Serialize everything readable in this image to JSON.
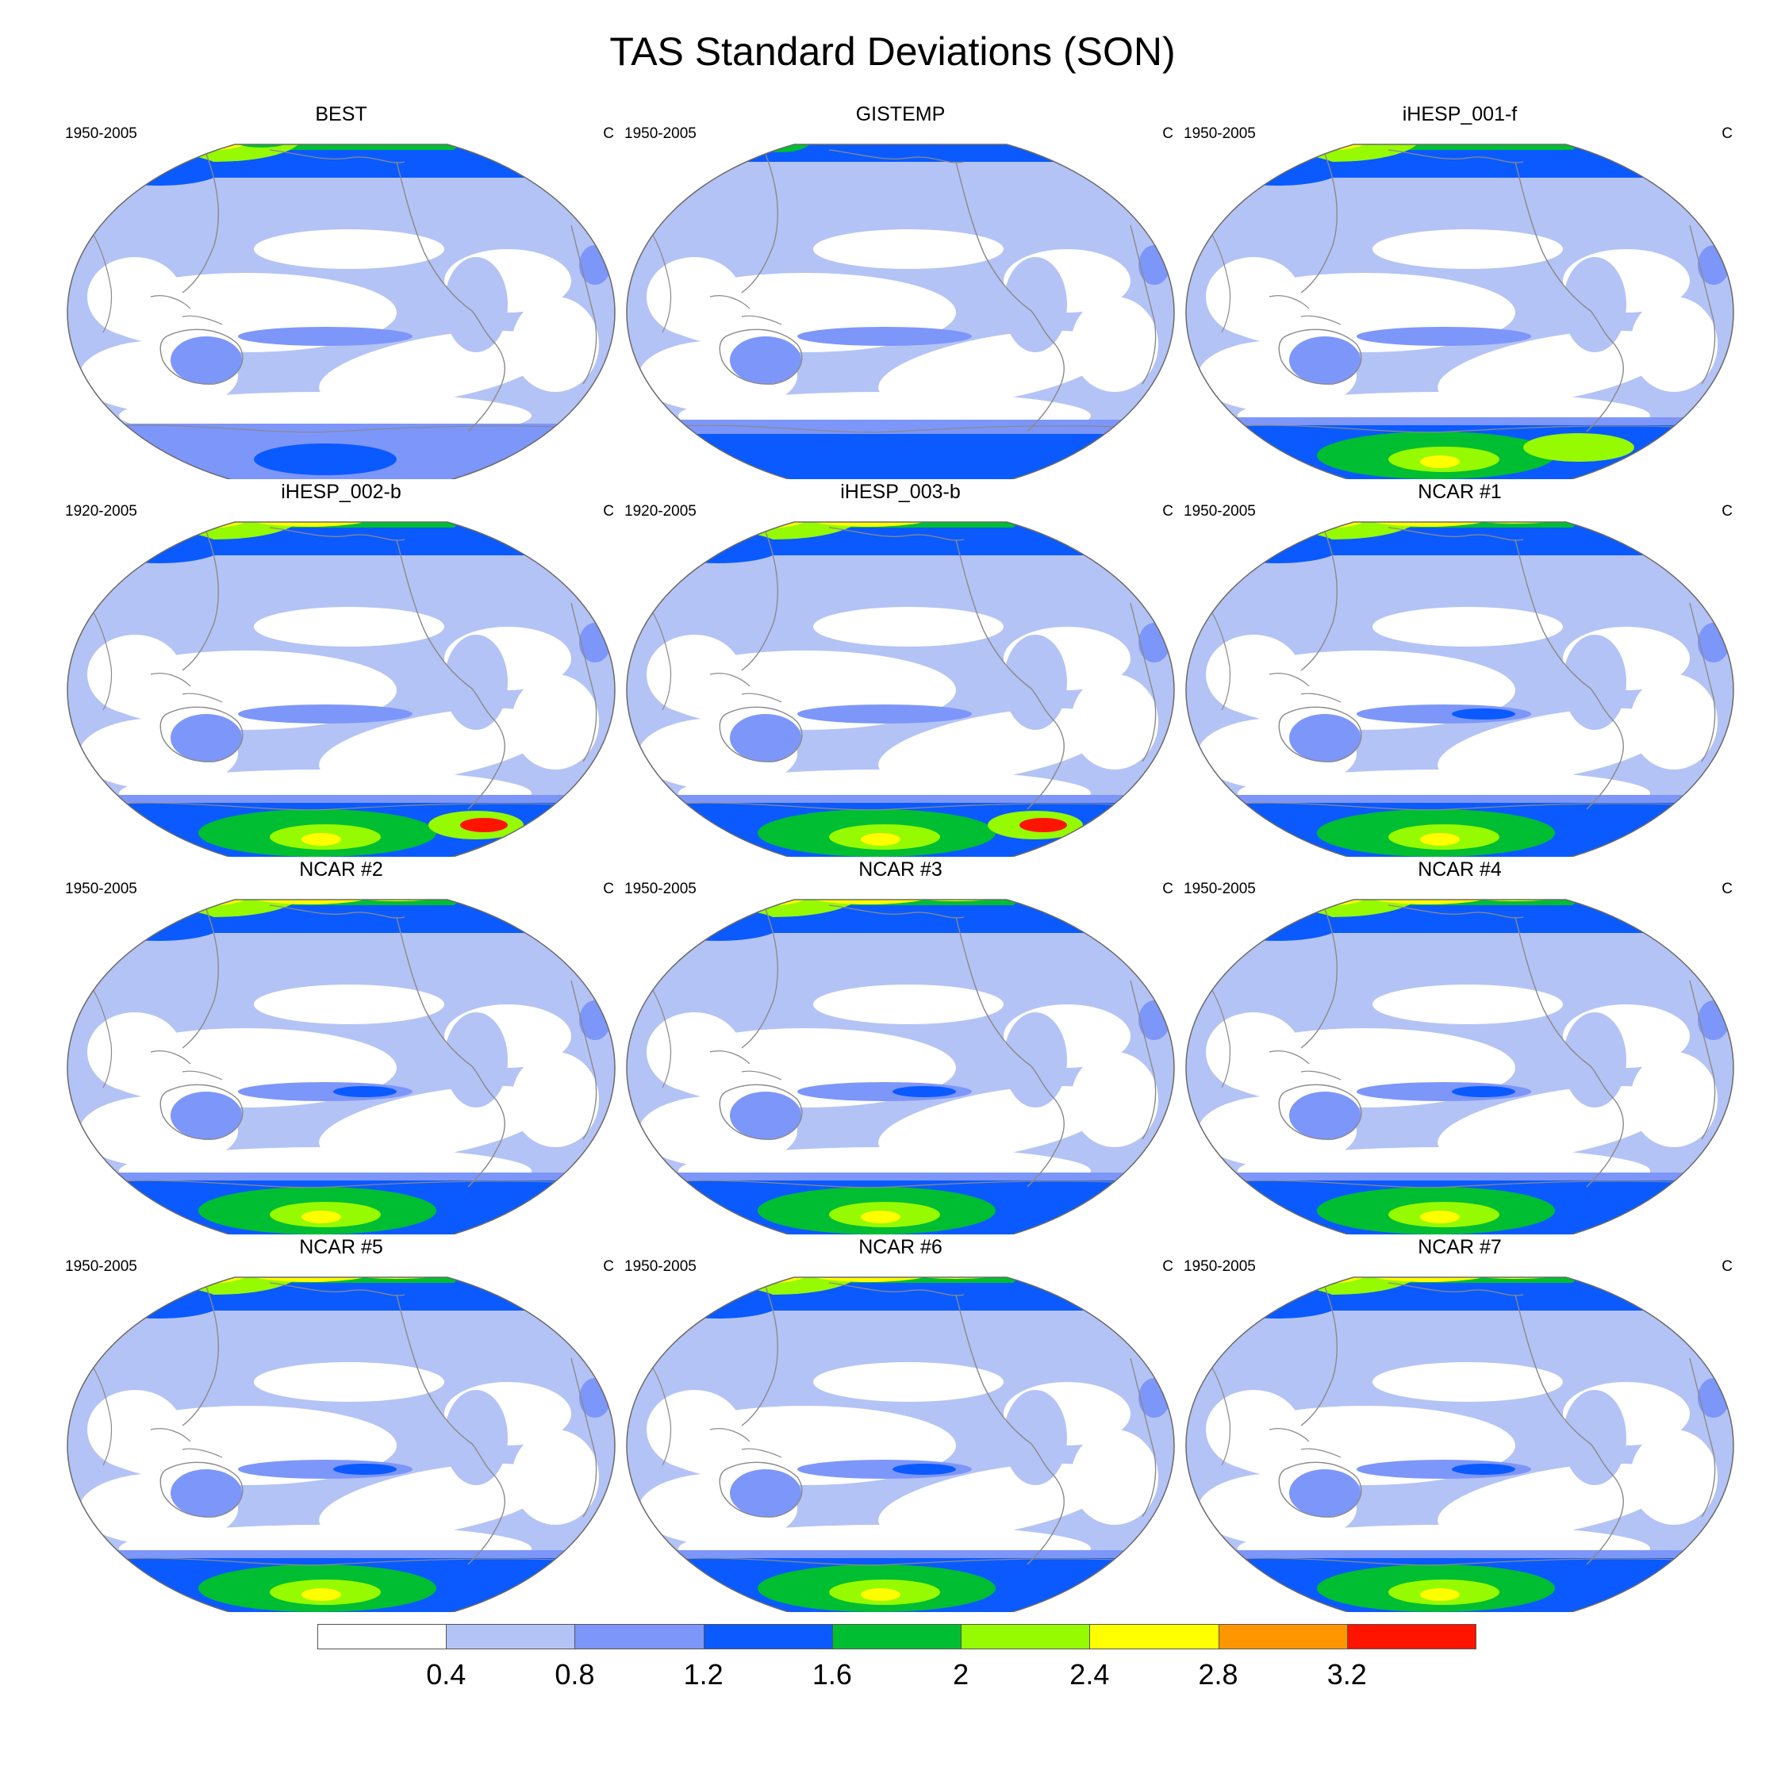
{
  "title": "TAS Standard Deviations (SON)",
  "colors": {
    "levels": [
      "#ffffff",
      "#b4c3f5",
      "#7d96fa",
      "#0a5aff",
      "#00be32",
      "#96fa00",
      "#ffff00",
      "#ff9600",
      "#ff1400"
    ],
    "land_line": "#8a8a8a",
    "frame_line": "#6a6a6a"
  },
  "panels": [
    {
      "title": "BEST",
      "period": "1950-2005",
      "unit": "C",
      "type": "obs1"
    },
    {
      "title": "GISTEMP",
      "period": "1950-2005",
      "unit": "C",
      "type": "obs2"
    },
    {
      "title": "iHESP_001-f",
      "period": "1950-2005",
      "unit": "C",
      "type": "model-a"
    },
    {
      "title": "iHESP_002-b",
      "period": "1920-2005",
      "unit": "C",
      "type": "model-b"
    },
    {
      "title": "iHESP_003-b",
      "period": "1920-2005",
      "unit": "C",
      "type": "model-b"
    },
    {
      "title": "NCAR #1",
      "period": "1950-2005",
      "unit": "C",
      "type": "model-c"
    },
    {
      "title": "NCAR #2",
      "period": "1950-2005",
      "unit": "C",
      "type": "model-c"
    },
    {
      "title": "NCAR #3",
      "period": "1950-2005",
      "unit": "C",
      "type": "model-c"
    },
    {
      "title": "NCAR #4",
      "period": "1950-2005",
      "unit": "C",
      "type": "model-c"
    },
    {
      "title": "NCAR #5",
      "period": "1950-2005",
      "unit": "C",
      "type": "model-c"
    },
    {
      "title": "NCAR #6",
      "period": "1950-2005",
      "unit": "C",
      "type": "model-c"
    },
    {
      "title": "NCAR #7",
      "period": "1950-2005",
      "unit": "C",
      "type": "model-c"
    }
  ],
  "colorbar": {
    "labels": [
      "0.4",
      "0.8",
      "1.2",
      "1.6",
      "2",
      "2.4",
      "2.8",
      "3.2"
    ]
  }
}
